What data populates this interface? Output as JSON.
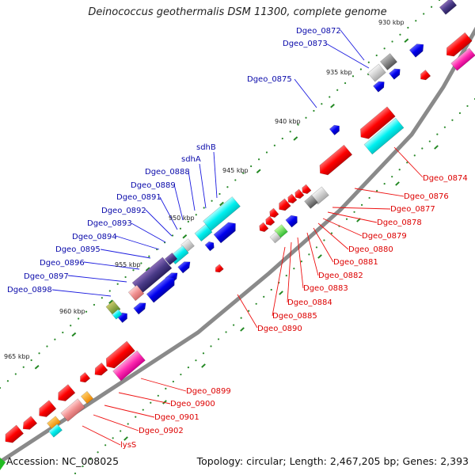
{
  "title": "Deinococcus geothermalis DSM 11300, complete genome",
  "footer": {
    "accession_label": "Accession: NC_008025",
    "summary": "Topology: circular; Length: 2,467,205 bp; Genes: 2,393"
  },
  "colors": {
    "backbone": "#808080",
    "forward_label": "#0a0aaa",
    "reverse_label": "#dd0000",
    "tick": "#228822"
  },
  "scale_labels": [
    {
      "id": "930",
      "text": "930 kbp"
    },
    {
      "id": "935",
      "text": "935 kbp"
    },
    {
      "id": "940",
      "text": "940 kbp"
    },
    {
      "id": "945",
      "text": "945 kbp"
    },
    {
      "id": "950",
      "text": "950 kbp"
    },
    {
      "id": "955",
      "text": "955 kbp"
    },
    {
      "id": "960",
      "text": "960 kbp"
    },
    {
      "id": "965",
      "text": "965 kbp"
    }
  ],
  "forward_gene_labels": [
    "Dgeo_0872",
    "Dgeo_0873",
    "Dgeo_0875",
    "sdhB",
    "sdhA",
    "Dgeo_0888",
    "Dgeo_0889",
    "Dgeo_0891",
    "Dgeo_0892",
    "Dgeo_0893",
    "Dgeo_0894",
    "Dgeo_0895",
    "Dgeo_0896",
    "Dgeo_0897",
    "Dgeo_0898"
  ],
  "reverse_gene_labels": [
    "Dgeo_0874",
    "Dgeo_0876",
    "Dgeo_0877",
    "Dgeo_0878",
    "Dgeo_0879",
    "Dgeo_0880",
    "Dgeo_0881",
    "Dgeo_0882",
    "Dgeo_0883",
    "Dgeo_0884",
    "Dgeo_0885",
    "Dgeo_0890",
    "Dgeo_0899",
    "Dgeo_0900",
    "Dgeo_0901",
    "Dgeo_0902",
    "lysS"
  ]
}
